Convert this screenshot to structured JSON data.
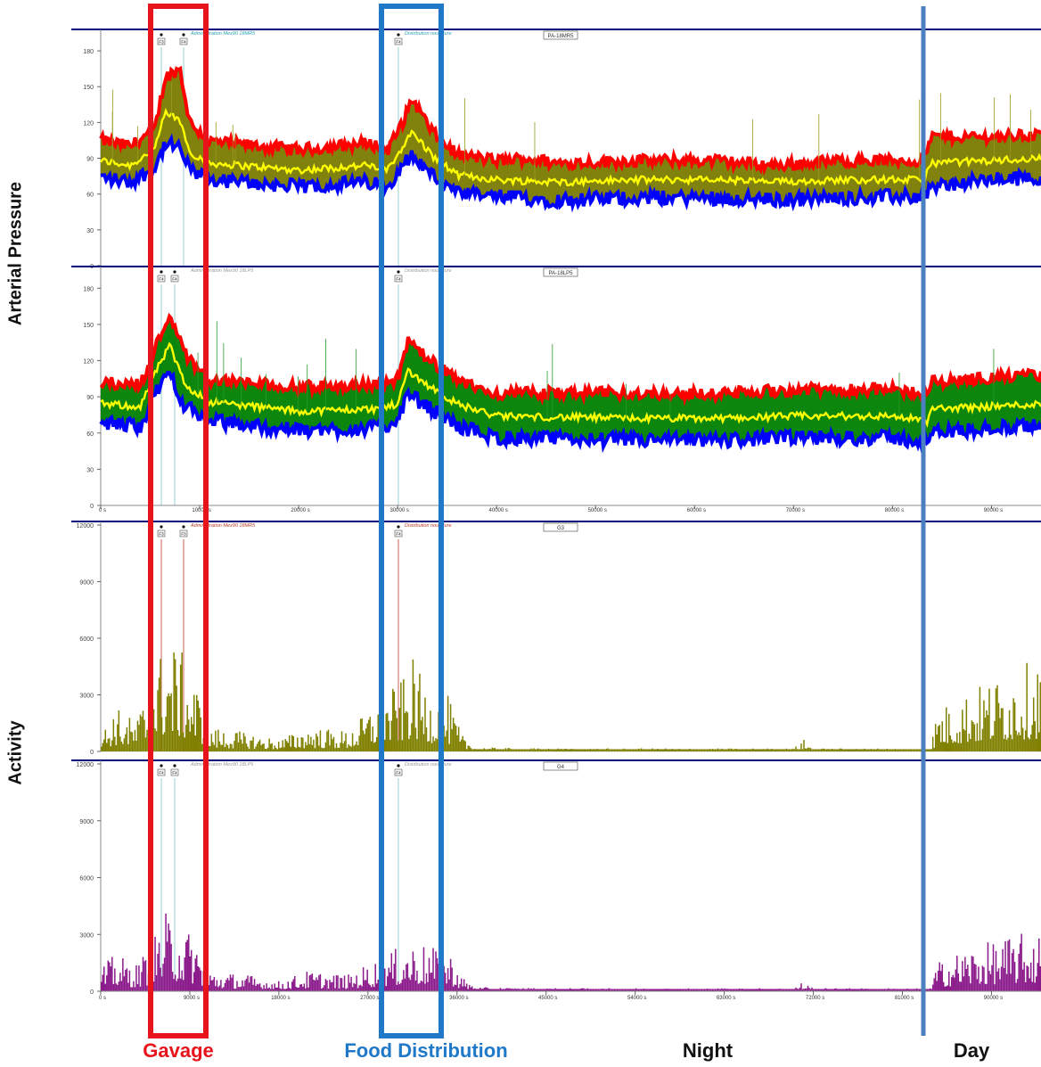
{
  "y_labels": {
    "pressure": "Arterial Pressure",
    "activity": "Activity"
  },
  "bottom_labels": [
    {
      "text": "Gavage",
      "color": "#e8141c"
    },
    {
      "text": "Food Distribution",
      "color": "#1f78c8"
    },
    {
      "text": "Night",
      "color": "#111111"
    },
    {
      "text": "Day",
      "color": "#111111"
    }
  ],
  "colors": {
    "gavage_box": "#e8141c",
    "food_box": "#1f78c8",
    "day_line": "#4a7fc0",
    "systolic": "#ff0000",
    "mean": "#ffff00",
    "diastolic": "#0000ff",
    "band_panel1": "#7a7a00",
    "band_panel2": "#008000",
    "activity_g3": "#808000",
    "activity_g4": "#8b1a8b",
    "panel_top": "#00007a"
  },
  "chart_data": [
    {
      "type": "area",
      "panel_label": "PA-18MR5",
      "event_labels": [
        "Administration Mex90 18MR5",
        "Distribution nourriture"
      ],
      "markers": [
        "F3",
        "F4",
        "F4"
      ],
      "y_ticks": [
        0,
        30,
        60,
        90,
        120,
        150,
        180
      ],
      "ylim": [
        0,
        195
      ],
      "xlim": [
        0,
        95000
      ],
      "series": [
        {
          "name": "systolic",
          "keyframes": [
            [
              0,
              105
            ],
            [
              3000,
              100
            ],
            [
              5500,
              115
            ],
            [
              6500,
              158
            ],
            [
              8000,
              165
            ],
            [
              9000,
              120
            ],
            [
              11000,
              104
            ],
            [
              20000,
              97
            ],
            [
              24000,
              100
            ],
            [
              27000,
              103
            ],
            [
              29000,
              97
            ],
            [
              30500,
              120
            ],
            [
              31500,
              140
            ],
            [
              33500,
              112
            ],
            [
              36000,
              93
            ],
            [
              40000,
              88
            ],
            [
              43000,
              90
            ],
            [
              46000,
              86
            ],
            [
              55000,
              88
            ],
            [
              62000,
              88
            ],
            [
              68000,
              84
            ],
            [
              75000,
              88
            ],
            [
              83000,
              88
            ],
            [
              84000,
              108
            ],
            [
              90000,
              108
            ],
            [
              95000,
              110
            ]
          ]
        },
        {
          "name": "mean",
          "keyframes": [
            [
              0,
              88
            ],
            [
              3000,
              84
            ],
            [
              5500,
              98
            ],
            [
              6500,
              128
            ],
            [
              8000,
              122
            ],
            [
              9000,
              95
            ],
            [
              11000,
              86
            ],
            [
              20000,
              80
            ],
            [
              27000,
              84
            ],
            [
              29000,
              80
            ],
            [
              30500,
              100
            ],
            [
              31500,
              112
            ],
            [
              33500,
              92
            ],
            [
              36000,
              76
            ],
            [
              40000,
              72
            ],
            [
              46000,
              70
            ],
            [
              55000,
              72
            ],
            [
              62000,
              72
            ],
            [
              68000,
              70
            ],
            [
              75000,
              72
            ],
            [
              83000,
              72
            ],
            [
              84000,
              86
            ],
            [
              90000,
              88
            ],
            [
              95000,
              90
            ]
          ]
        },
        {
          "name": "diastolic",
          "keyframes": [
            [
              0,
              74
            ],
            [
              3000,
              70
            ],
            [
              5500,
              82
            ],
            [
              6500,
              102
            ],
            [
              8000,
              98
            ],
            [
              9000,
              80
            ],
            [
              11000,
              72
            ],
            [
              20000,
              66
            ],
            [
              27000,
              70
            ],
            [
              29000,
              66
            ],
            [
              30500,
              86
            ],
            [
              31500,
              92
            ],
            [
              33500,
              76
            ],
            [
              36000,
              60
            ],
            [
              40000,
              58
            ],
            [
              46000,
              55
            ],
            [
              55000,
              57
            ],
            [
              62000,
              57
            ],
            [
              68000,
              55
            ],
            [
              75000,
              57
            ],
            [
              83000,
              58
            ],
            [
              84000,
              66
            ],
            [
              90000,
              72
            ],
            [
              95000,
              74
            ]
          ]
        }
      ]
    },
    {
      "type": "area",
      "panel_label": "PA-18LP5",
      "event_labels": [
        "Administration Mex90 18LP5",
        "Distribution nourriture"
      ],
      "markers": [
        "F4",
        "F4",
        "F4"
      ],
      "y_ticks": [
        0,
        30,
        60,
        90,
        120,
        150,
        180
      ],
      "ylim": [
        0,
        195
      ],
      "xlim": [
        0,
        95000
      ],
      "x_ticks": [
        "0 s",
        "10000 s",
        "20000 s",
        "30000 s",
        "40000 s",
        "50000 s",
        "60000 s",
        "70000 s",
        "80000 s",
        "90000 s"
      ],
      "series": [
        {
          "name": "systolic",
          "keyframes": [
            [
              0,
              102
            ],
            [
              4000,
              100
            ],
            [
              6000,
              140
            ],
            [
              7000,
              160
            ],
            [
              8500,
              125
            ],
            [
              11000,
              104
            ],
            [
              20000,
              98
            ],
            [
              28000,
              100
            ],
            [
              30000,
              105
            ],
            [
              31000,
              135
            ],
            [
              33000,
              122
            ],
            [
              36000,
              103
            ],
            [
              40000,
              93
            ],
            [
              55000,
              93
            ],
            [
              62000,
              92
            ],
            [
              70000,
              96
            ],
            [
              80000,
              96
            ],
            [
              83500,
              92
            ],
            [
              84000,
              102
            ],
            [
              90000,
              106
            ],
            [
              95000,
              108
            ]
          ]
        },
        {
          "name": "mean",
          "keyframes": [
            [
              0,
              84
            ],
            [
              4000,
              82
            ],
            [
              6000,
              118
            ],
            [
              7000,
              132
            ],
            [
              8500,
              100
            ],
            [
              11000,
              86
            ],
            [
              20000,
              78
            ],
            [
              28000,
              80
            ],
            [
              30000,
              84
            ],
            [
              31000,
              112
            ],
            [
              33000,
              100
            ],
            [
              36000,
              84
            ],
            [
              40000,
              74
            ],
            [
              55000,
              72
            ],
            [
              62000,
              72
            ],
            [
              70000,
              74
            ],
            [
              80000,
              74
            ],
            [
              83500,
              70
            ],
            [
              84000,
              80
            ],
            [
              90000,
              82
            ],
            [
              95000,
              84
            ]
          ]
        },
        {
          "name": "diastolic",
          "keyframes": [
            [
              0,
              68
            ],
            [
              4000,
              66
            ],
            [
              6000,
              100
            ],
            [
              7000,
              110
            ],
            [
              8500,
              82
            ],
            [
              11000,
              70
            ],
            [
              20000,
              62
            ],
            [
              28000,
              64
            ],
            [
              30000,
              70
            ],
            [
              31000,
              92
            ],
            [
              33000,
              82
            ],
            [
              36000,
              66
            ],
            [
              40000,
              56
            ],
            [
              55000,
              54
            ],
            [
              62000,
              54
            ],
            [
              70000,
              56
            ],
            [
              80000,
              56
            ],
            [
              83500,
              52
            ],
            [
              84000,
              60
            ],
            [
              90000,
              64
            ],
            [
              95000,
              66
            ]
          ]
        }
      ]
    },
    {
      "type": "bar",
      "panel_label": "G3",
      "event_labels": [
        "Administration Mex90 18MR5",
        "Distribution nourriture"
      ],
      "markers": [
        "F3",
        "F3",
        "F4"
      ],
      "y_ticks": [
        0,
        3000,
        6000,
        9000,
        12000
      ],
      "ylim": [
        0,
        12000
      ],
      "xlim": [
        0,
        95000
      ],
      "series": [
        {
          "name": "G3",
          "keyframes": [
            [
              0,
              800
            ],
            [
              1500,
              2200
            ],
            [
              3500,
              1500
            ],
            [
              5500,
              4000
            ],
            [
              6500,
              5500
            ],
            [
              8000,
              5000
            ],
            [
              9500,
              3500
            ],
            [
              11000,
              1200
            ],
            [
              15000,
              900
            ],
            [
              18000,
              600
            ],
            [
              21000,
              1200
            ],
            [
              25000,
              1000
            ],
            [
              28000,
              2500
            ],
            [
              30500,
              3500
            ],
            [
              31500,
              4500
            ],
            [
              33000,
              3000
            ],
            [
              35000,
              2800
            ],
            [
              36500,
              800
            ],
            [
              38000,
              200
            ],
            [
              45000,
              150
            ],
            [
              70000,
              150
            ],
            [
              71000,
              600
            ],
            [
              72000,
              150
            ],
            [
              83000,
              150
            ],
            [
              83800,
              150
            ],
            [
              84500,
              2000
            ],
            [
              87000,
              2800
            ],
            [
              90000,
              3500
            ],
            [
              93000,
              4200
            ],
            [
              95000,
              4500
            ]
          ]
        }
      ]
    },
    {
      "type": "bar",
      "panel_label": "G4",
      "event_labels": [
        "Administration Mex90 18LP5",
        "Distribution nourriture"
      ],
      "markers": [
        "F4",
        "F4",
        "F4"
      ],
      "y_ticks": [
        0,
        3000,
        6000,
        9000,
        12000
      ],
      "ylim": [
        0,
        12000
      ],
      "xlim": [
        0,
        95000
      ],
      "x_ticks": [
        "0 s",
        "9000 s",
        "18000 s",
        "27000 s",
        "36000 s",
        "45000 s",
        "54000 s",
        "63000 s",
        "72000 s",
        "81000 s",
        "90000 s"
      ],
      "series": [
        {
          "name": "G4",
          "keyframes": [
            [
              0,
              1200
            ],
            [
              1500,
              1800
            ],
            [
              3500,
              1300
            ],
            [
              5000,
              2200
            ],
            [
              6500,
              3800
            ],
            [
              8000,
              3400
            ],
            [
              9500,
              2600
            ],
            [
              11000,
              1000
            ],
            [
              15000,
              800
            ],
            [
              18000,
              500
            ],
            [
              21000,
              1000
            ],
            [
              25000,
              800
            ],
            [
              28000,
              1600
            ],
            [
              30500,
              2200
            ],
            [
              32000,
              2400
            ],
            [
              34000,
              2000
            ],
            [
              35500,
              1800
            ],
            [
              36500,
              700
            ],
            [
              38000,
              200
            ],
            [
              46000,
              150
            ],
            [
              70000,
              150
            ],
            [
              71000,
              500
            ],
            [
              72000,
              150
            ],
            [
              83000,
              150
            ],
            [
              83800,
              150
            ],
            [
              84500,
              1400
            ],
            [
              87000,
              2000
            ],
            [
              90000,
              2400
            ],
            [
              93000,
              2800
            ],
            [
              95000,
              2800
            ]
          ]
        }
      ]
    }
  ]
}
